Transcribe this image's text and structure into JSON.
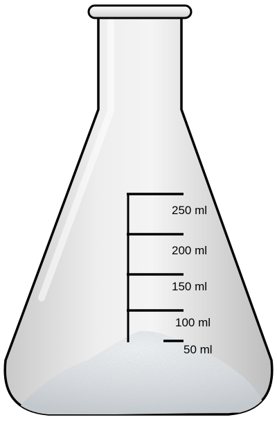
{
  "flask": {
    "colors": {
      "glass": "#e2e2e2",
      "glass_outline": "#000000",
      "powder": "#cfd3d5"
    },
    "scale": {
      "marks": [
        {
          "value": 250,
          "label": "250 ml"
        },
        {
          "value": 200,
          "label": "200 ml"
        },
        {
          "value": 150,
          "label": "150 ml"
        },
        {
          "value": 100,
          "label": "100 ml"
        },
        {
          "value": 50,
          "label": "50 ml"
        }
      ]
    },
    "contents": {
      "type": "white powder",
      "level_ml": 55
    }
  }
}
